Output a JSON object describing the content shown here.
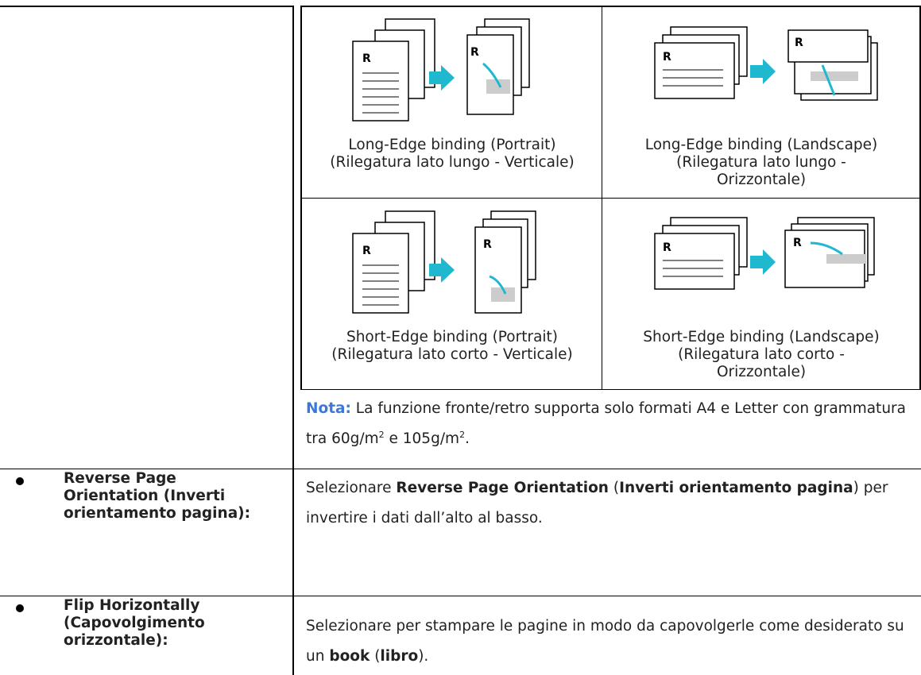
{
  "binding_table": {
    "cells": [
      {
        "caption": "Long-Edge binding (Portrait) (Rilegatura lato lungo - Verticale)"
      },
      {
        "caption": "Long-Edge binding (Landscape) (Rilegatura lato lungo - Orizzontale)"
      },
      {
        "caption": "Short-Edge binding (Portrait) (Rilegatura lato corto - Verticale)"
      },
      {
        "caption": "Short-Edge binding (Landscape) (Rilegatura lato corto - Orizzontale)"
      }
    ]
  },
  "note": {
    "label": "Nota:",
    "text": [
      " La funzione fronte/retro supporta solo formati A4 e Letter con grammatura tra 60g/m",
      "2",
      " e 105g/m",
      "2",
      "."
    ]
  },
  "rows": [
    {
      "label": "Reverse Page Orientation (Inverti orientamento pagina):",
      "description": [
        "Selezionare ",
        "Reverse Page Orientation",
        " (",
        "Inverti orientamento pagina",
        ") per invertire i dati dall’alto al basso."
      ]
    },
    {
      "label": "Flip Horizontally (Capovolgimento orizzontale):",
      "description": [
        "Selezionare per stampare le pagine in modo da capovolgerle come desiderato su un ",
        "book",
        " (",
        "libro",
        ")."
      ]
    }
  ]
}
